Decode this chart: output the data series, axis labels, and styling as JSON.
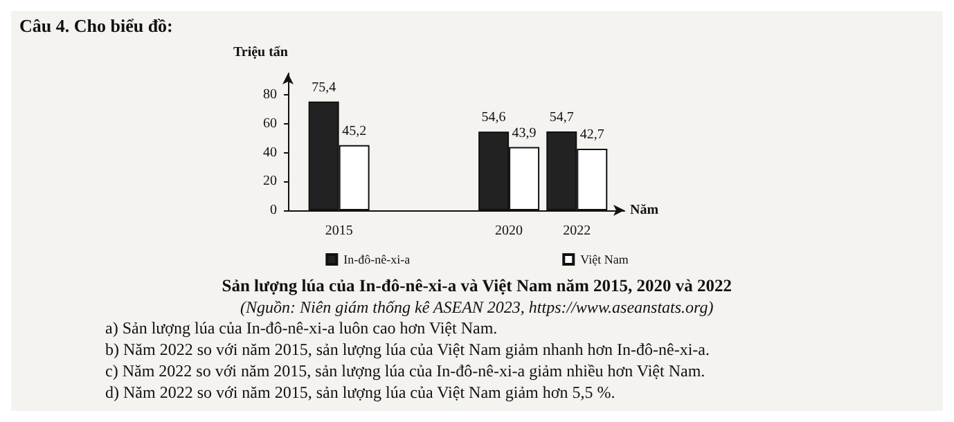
{
  "chart_data": {
    "type": "bar",
    "title": "Sản lượng lúa của In-đô-nê-xi-a và Việt Nam năm 2015, 2020 và 2022",
    "ylabel": "Triệu tấn",
    "xlabel": "Năm",
    "x": [
      2015,
      2020,
      2022
    ],
    "xlim": [
      2013.5,
      2023.4
    ],
    "xticks": [
      2015,
      2020,
      2022
    ],
    "ylim": [
      0,
      95
    ],
    "yticks": [
      0,
      20,
      40,
      60,
      80
    ],
    "series": [
      {
        "name": "In-đô-nê-xi-a",
        "color": "#222222",
        "values": [
          75.4,
          54.6,
          54.7
        ],
        "value_labels": [
          "75,4",
          "54,6",
          "54,7"
        ]
      },
      {
        "name": "Việt Nam",
        "color": "#ffffff",
        "values": [
          45.2,
          43.9,
          42.7
        ],
        "value_labels": [
          "45,2",
          "43,9",
          "42,7"
        ]
      }
    ],
    "legend": "bottom",
    "grid": false,
    "annotations": [
      "Câu 4. Cho biểu đồ:",
      "(Nguồn: Niên giám thống kê ASEAN 2023, https://www.aseanstats.org)",
      "a) Sản lượng lúa của In-đô-nê-xi-a luôn cao hơn Việt Nam.",
      "b) Năm 2022 so với năm 2015, sản lượng lúa của Việt Nam giảm nhanh hơn In-đô-nê-xi-a.",
      "c) Năm 2022 so với năm 2015, sản lượng lúa của In-đô-nê-xi-a giảm nhiều hơn Việt Nam.",
      "d) Năm 2022 so với năm 2015, sản lượng lúa của Việt Nam giảm hơn 5,5 %."
    ]
  }
}
